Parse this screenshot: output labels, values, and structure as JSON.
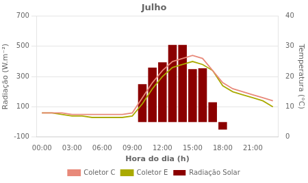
{
  "chart_data": {
    "type": "bar",
    "title": "Julho",
    "xlabel": "Hora do dia (h)",
    "ylabel": "Radiação (W.m⁻²)",
    "y2label": "Temperatura (°C)",
    "xlim": [
      -0.5,
      23.5
    ],
    "xticks": [
      {
        "value": 0,
        "label": "00:00"
      },
      {
        "value": 3,
        "label": "03:00"
      },
      {
        "value": 6,
        "label": "06:00"
      },
      {
        "value": 9,
        "label": "09:00"
      },
      {
        "value": 12,
        "label": "12:00"
      },
      {
        "value": 15,
        "label": "15:00"
      },
      {
        "value": 18,
        "label": "18:00"
      },
      {
        "value": 21,
        "label": "21:00"
      }
    ],
    "ylim": [
      -100,
      700
    ],
    "yticks": [
      -100,
      100,
      300,
      500,
      700
    ],
    "y2lim": [
      0,
      40
    ],
    "y2ticks": [
      0,
      10,
      20,
      30,
      40
    ],
    "grid": true,
    "legend": "bottom",
    "series": [
      {
        "name": "Radiação Solar",
        "type": "bar",
        "color": "#8B0000",
        "x": [
          10,
          11,
          12,
          13,
          14,
          15,
          16,
          17,
          18
        ],
        "values": [
          250,
          360,
          395,
          510,
          510,
          350,
          355,
          130,
          -50
        ]
      },
      {
        "name": "Coletor C",
        "type": "line",
        "axis": "y2",
        "color": "#E8897A",
        "x": [
          0,
          1,
          2,
          3,
          4,
          5,
          6,
          7,
          8,
          9,
          10,
          11,
          12,
          13,
          14,
          15,
          16,
          17,
          18,
          19,
          20,
          21,
          22,
          23
        ],
        "values": [
          8,
          8,
          8,
          7.5,
          7.5,
          7.5,
          7.5,
          7.5,
          7.5,
          8,
          13,
          18,
          22,
          25,
          26,
          27,
          26,
          22,
          18,
          16,
          15,
          14,
          13,
          12
        ]
      },
      {
        "name": "Coletor E",
        "type": "line",
        "axis": "y2",
        "color": "#AAAA00",
        "x": [
          0,
          1,
          2,
          3,
          4,
          5,
          6,
          7,
          8,
          9,
          10,
          11,
          12,
          13,
          14,
          15,
          16,
          17,
          18,
          19,
          20,
          21,
          22,
          23
        ],
        "values": [
          8,
          8,
          7.5,
          7,
          7,
          6.5,
          6.5,
          6.5,
          6.5,
          7,
          11,
          16,
          20,
          23,
          24,
          25,
          24,
          22,
          17,
          15,
          14,
          13,
          12,
          10
        ]
      }
    ]
  }
}
